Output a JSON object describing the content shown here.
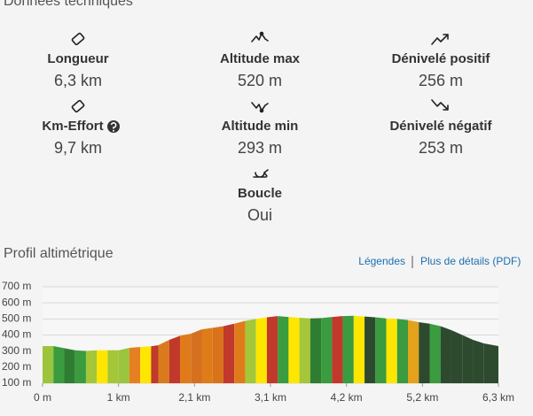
{
  "header": {
    "title": "Données techniques"
  },
  "stats": [
    {
      "label": "Longueur",
      "value": "6,3 km"
    },
    {
      "label": "Altitude max",
      "value": "520 m"
    },
    {
      "label": "Dénivelé positif",
      "value": "256 m"
    },
    {
      "label": "Km-Effort",
      "value": "9,7 km"
    },
    {
      "label": "Altitude min",
      "value": "293 m"
    },
    {
      "label": "Dénivelé négatif",
      "value": "253 m"
    },
    {
      "label": "Boucle",
      "value": "Oui"
    }
  ],
  "profile": {
    "title": "Profil altimétrique",
    "links": [
      "Légendes",
      "Plus de détails (PDF)"
    ]
  },
  "chart_data": {
    "type": "area",
    "x": [
      0,
      0.15,
      0.3,
      0.45,
      0.6,
      0.75,
      0.9,
      1.05,
      1.2,
      1.35,
      1.5,
      1.6,
      1.75,
      1.9,
      2.05,
      2.2,
      2.35,
      2.5,
      2.65,
      2.8,
      2.95,
      3.1,
      3.25,
      3.4,
      3.55,
      3.7,
      3.85,
      4.0,
      4.15,
      4.3,
      4.45,
      4.6,
      4.75,
      4.9,
      5.05,
      5.2,
      5.35,
      5.5,
      5.65,
      5.8,
      5.95,
      6.1,
      6.3
    ],
    "values": [
      331,
      331,
      318,
      305,
      300,
      305,
      305,
      305,
      320,
      326,
      330,
      337,
      370,
      395,
      408,
      435,
      445,
      455,
      470,
      488,
      500,
      510,
      518,
      512,
      507,
      503,
      505,
      512,
      518,
      520,
      515,
      510,
      503,
      500,
      493,
      480,
      470,
      455,
      430,
      400,
      370,
      348,
      331
    ],
    "segment_colors": [
      "#9bc53d",
      "#3a9b3f",
      "#2f7d32",
      "#3a9b3f",
      "#a4c639",
      "#ffe600",
      "#a4c639",
      "#9bc53d",
      "#e67e22",
      "#ffe600",
      "#c0392b",
      "#d97a1c",
      "#c0392b",
      "#e07b1a",
      "#d4701f",
      "#e07b1a",
      "#d9731a",
      "#c0392b",
      "#e07b1a",
      "#a4c639",
      "#ffe600",
      "#c0392b",
      "#3a9b3f",
      "#ffe600",
      "#a4c639",
      "#2f7d32",
      "#3a9b3f",
      "#c0392b",
      "#3a9b3f",
      "#ffe600",
      "#2d4a2e",
      "#3a9b3f",
      "#ffe600",
      "#3a9b3f",
      "#e3a21a",
      "#2d4a2e",
      "#3a9b3f",
      "#2d4a2e",
      "#2d4a2e",
      "#2d4a2e",
      "#2d4a2e",
      "#2d4a2e"
    ],
    "xlim": [
      0,
      6.3
    ],
    "xticks": [
      {
        "value": 0,
        "label": "0 m"
      },
      {
        "value": 1.05,
        "label": "1 km"
      },
      {
        "value": 2.1,
        "label": "2,1 km"
      },
      {
        "value": 3.15,
        "label": "3,1 km"
      },
      {
        "value": 4.2,
        "label": "4,2 km"
      },
      {
        "value": 5.25,
        "label": "5,2 km"
      },
      {
        "value": 6.3,
        "label": "6,3 km"
      }
    ],
    "ylim": [
      100,
      700
    ],
    "yticks": [
      {
        "value": 100,
        "label": "100 m"
      },
      {
        "value": 200,
        "label": "200 m"
      },
      {
        "value": 300,
        "label": "300 m"
      },
      {
        "value": 400,
        "label": "400 m"
      },
      {
        "value": 500,
        "label": "500 m"
      },
      {
        "value": 600,
        "label": "600 m"
      },
      {
        "value": 700,
        "label": "700 m"
      }
    ],
    "grid": true
  }
}
